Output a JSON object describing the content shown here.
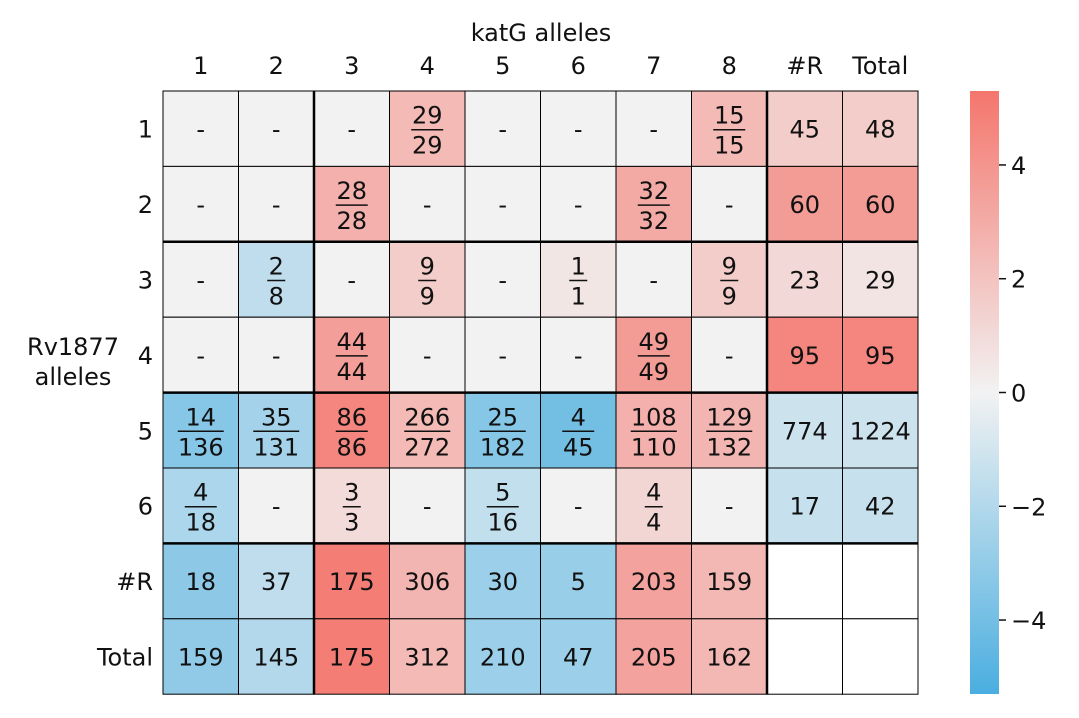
{
  "chart_data": {
    "type": "heatmap",
    "title": "katG alleles",
    "ylabel": "Rv1877\nalleles",
    "column_labels": [
      "1",
      "2",
      "3",
      "4",
      "5",
      "6",
      "7",
      "8",
      "#R",
      "Total"
    ],
    "row_labels": [
      "1",
      "2",
      "3",
      "4",
      "5",
      "6",
      "#R",
      "Total"
    ],
    "cell_text": [
      [
        "-",
        "-",
        "-",
        "29/29",
        "-",
        "-",
        "-",
        "15/15",
        "45",
        "48"
      ],
      [
        "-",
        "-",
        "28/28",
        "-",
        "-",
        "-",
        "32/32",
        "-",
        "60",
        "60"
      ],
      [
        "-",
        "2/8",
        "-",
        "9/9",
        "-",
        "1/1",
        "-",
        "9/9",
        "23",
        "29"
      ],
      [
        "-",
        "-",
        "44/44",
        "-",
        "-",
        "-",
        "49/49",
        "-",
        "95",
        "95"
      ],
      [
        "14/136",
        "35/131",
        "86/86",
        "266/272",
        "25/182",
        "4/45",
        "108/110",
        "129/132",
        "774",
        "1224"
      ],
      [
        "4/18",
        "-",
        "3/3",
        "-",
        "5/16",
        "-",
        "4/4",
        "-",
        "17",
        "42"
      ],
      [
        "18",
        "37",
        "175",
        "306",
        "30",
        "5",
        "203",
        "159",
        "",
        ""
      ],
      [
        "159",
        "145",
        "175",
        "312",
        "210",
        "47",
        "205",
        "162",
        "",
        ""
      ]
    ],
    "values": [
      [
        0,
        0,
        0,
        2.4,
        0,
        0,
        0,
        2.4,
        1.6,
        1.6
      ],
      [
        0,
        0,
        2.8,
        0,
        0,
        0,
        3.1,
        0,
        3.7,
        3.7
      ],
      [
        0,
        -1.6,
        0,
        1.6,
        0,
        0.5,
        0,
        1.6,
        1.1,
        0.6
      ],
      [
        0,
        0,
        3.6,
        0,
        0,
        0,
        3.7,
        0,
        4.6,
        4.6
      ],
      [
        -3.4,
        -2.5,
        4.6,
        2.4,
        -3.4,
        -4.0,
        2.8,
        2.6,
        -1.2,
        -1.2
      ],
      [
        -2.2,
        0,
        1.0,
        0,
        -1.5,
        0,
        1.2,
        0,
        -1.4,
        -1.4
      ],
      [
        -3.2,
        -1.6,
        5.0,
        2.6,
        -2.7,
        -2.8,
        3.4,
        2.5,
        null,
        null
      ],
      [
        -3.1,
        -2.0,
        5.0,
        2.4,
        -2.7,
        -2.7,
        3.4,
        2.5,
        null,
        null
      ]
    ],
    "colorbar": {
      "range": [
        -5.3,
        5.3
      ],
      "ticks": [
        4,
        2,
        0,
        -2,
        -4
      ],
      "tick_labels": [
        "4",
        "2",
        "0",
        "−2",
        "−4"
      ],
      "colors": {
        "negative": "#4aaee0",
        "zero": "#f2f2f2",
        "positive": "#f4766d"
      }
    }
  }
}
